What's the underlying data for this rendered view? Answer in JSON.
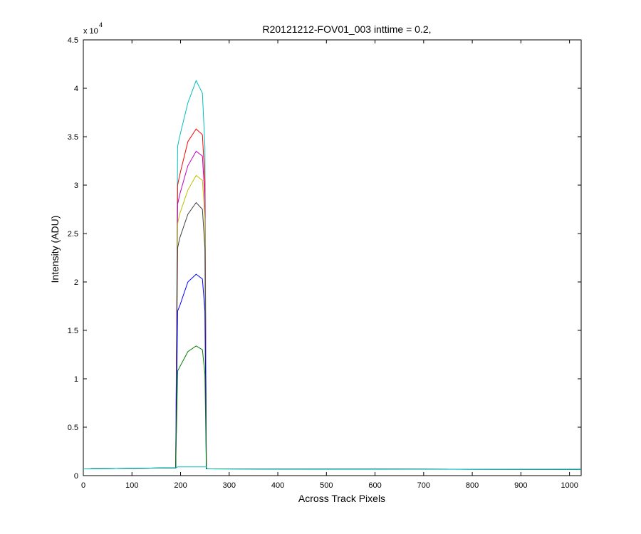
{
  "chart_data": {
    "type": "line",
    "title": "R20121212-FOV01_003 inttime = 0.2,",
    "xlabel": "Across Track Pixels",
    "ylabel": "Intensity (ADU)",
    "y_multiplier_label": "x 10",
    "y_multiplier_exponent": "4",
    "xlim": [
      0,
      1024
    ],
    "ylim": [
      0,
      45000
    ],
    "x_ticks": [
      0,
      100,
      200,
      300,
      400,
      500,
      600,
      700,
      800,
      900,
      1000
    ],
    "y_ticks": [
      0,
      5000,
      10000,
      15000,
      20000,
      25000,
      30000,
      35000,
      40000,
      45000
    ],
    "y_tick_labels": [
      "0",
      "0.5",
      "1",
      "1.5",
      "2",
      "2.5",
      "3",
      "3.5",
      "4",
      "4.5"
    ],
    "grid": false,
    "series": [
      {
        "color": "#00bfbf",
        "x": [
          0,
          130,
          190,
          194,
          198,
          215,
          232,
          245,
          250,
          253,
          255,
          300,
          500,
          800,
          1024
        ],
        "values": [
          700,
          750,
          800,
          34000,
          35000,
          38500,
          40800,
          39500,
          34000,
          700,
          700,
          700,
          680,
          650,
          650
        ]
      },
      {
        "color": "#ff0000",
        "x": [
          0,
          190,
          194,
          198,
          215,
          232,
          245,
          250,
          253,
          255,
          1024
        ],
        "values": [
          700,
          800,
          30000,
          31000,
          34500,
          35800,
          35200,
          30500,
          700,
          700,
          650
        ]
      },
      {
        "color": "#bf00bf",
        "x": [
          0,
          190,
          194,
          198,
          215,
          232,
          245,
          250,
          253,
          255,
          1024
        ],
        "values": [
          700,
          800,
          28000,
          29000,
          32000,
          33500,
          33000,
          28500,
          700,
          700,
          650
        ]
      },
      {
        "color": "#bfbf00",
        "x": [
          0,
          190,
          194,
          198,
          215,
          232,
          245,
          250,
          253,
          255,
          1024
        ],
        "values": [
          700,
          800,
          26000,
          27000,
          29500,
          31000,
          30500,
          26500,
          700,
          700,
          650
        ]
      },
      {
        "color": "#404040",
        "x": [
          0,
          190,
          194,
          198,
          215,
          232,
          245,
          250,
          253,
          255,
          1024
        ],
        "values": [
          700,
          800,
          23500,
          24500,
          27000,
          28200,
          27500,
          23500,
          700,
          700,
          650
        ]
      },
      {
        "color": "#0000ff",
        "x": [
          0,
          190,
          194,
          198,
          215,
          232,
          245,
          250,
          253,
          255,
          1024
        ],
        "values": [
          700,
          800,
          17000,
          17500,
          20000,
          20800,
          20300,
          17000,
          700,
          700,
          650
        ]
      },
      {
        "color": "#008000",
        "x": [
          0,
          190,
          194,
          198,
          215,
          232,
          245,
          250,
          253,
          255,
          1024
        ],
        "values": [
          700,
          800,
          10800,
          11200,
          12800,
          13400,
          13000,
          10500,
          700,
          700,
          650
        ]
      },
      {
        "color": "#00bfbf",
        "x": [
          0,
          190,
          194,
          253,
          255,
          1024
        ],
        "values": [
          700,
          800,
          900,
          900,
          700,
          650
        ]
      }
    ]
  }
}
